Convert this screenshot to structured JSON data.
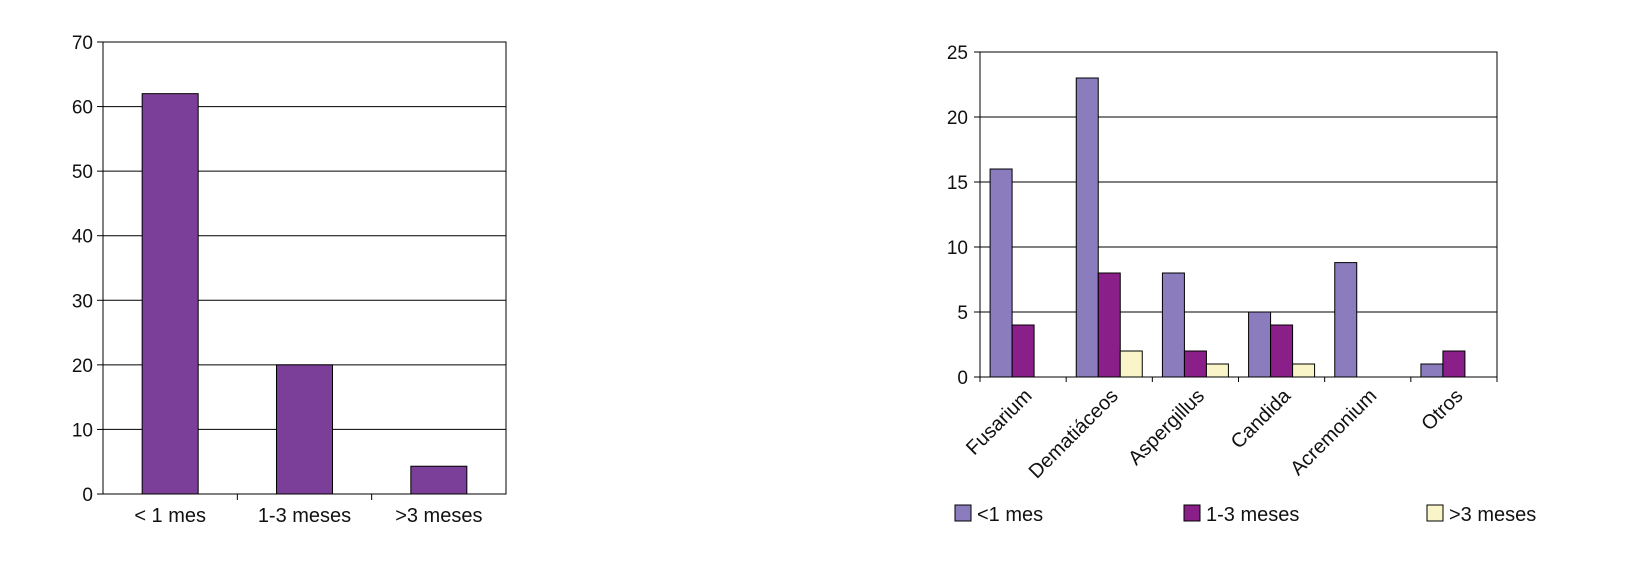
{
  "chart_data": [
    {
      "type": "bar",
      "title": "",
      "xlabel": "",
      "ylabel": "",
      "categories": [
        "< 1 mes",
        "1-3 meses",
        ">3 meses"
      ],
      "values": [
        62,
        20,
        4.3
      ],
      "ylim": [
        0,
        70
      ],
      "yticks": [
        "0",
        "10",
        "20",
        "30",
        "40",
        "50",
        "60",
        "70"
      ],
      "grid": true,
      "color": "#7B3F99"
    },
    {
      "type": "bar",
      "title": "",
      "xlabel": "",
      "ylabel": "",
      "categories": [
        "Fusarium",
        "Dematiáceos",
        "Aspergillus",
        "Candida",
        "Acremonium",
        "Otros"
      ],
      "series": [
        {
          "name": "<1 mes",
          "values": [
            16,
            23,
            8,
            5,
            8.8,
            1
          ],
          "color": "#8B7DBD"
        },
        {
          "name": "1-3 meses",
          "values": [
            4,
            8,
            2,
            4,
            0,
            2
          ],
          "color": "#8B1F8A"
        },
        {
          "name": ">3 meses",
          "values": [
            0,
            2,
            1,
            1,
            0,
            0
          ],
          "color": "#FAF5C8"
        }
      ],
      "ylim": [
        0,
        25
      ],
      "yticks": [
        "0",
        "5",
        "10",
        "15",
        "20",
        "25"
      ],
      "grid": true,
      "legend_position": "bottom"
    }
  ]
}
